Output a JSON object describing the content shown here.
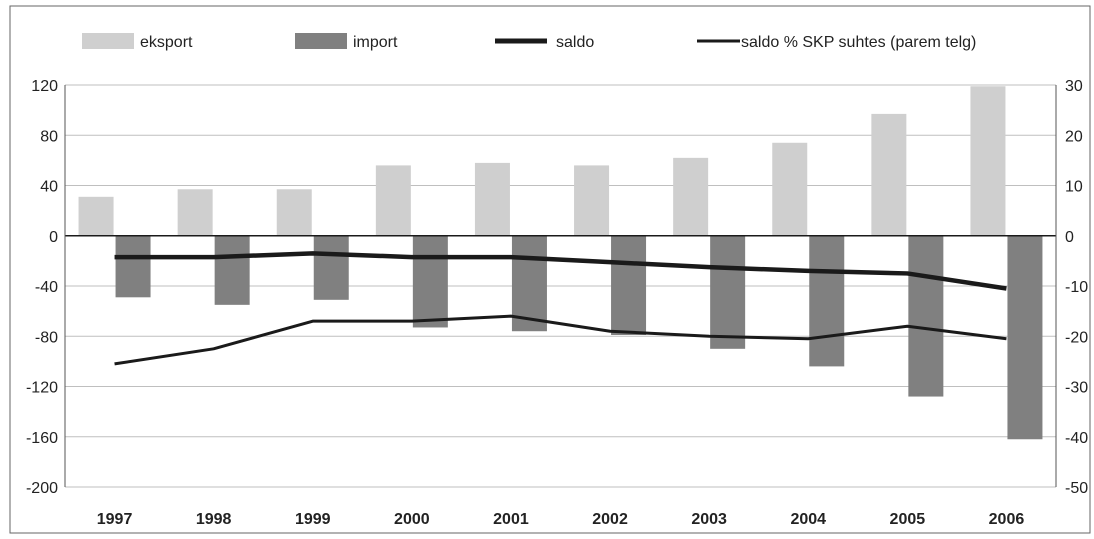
{
  "chart_data": {
    "type": "bar",
    "categories": [
      "1997",
      "1998",
      "1999",
      "2000",
      "2001",
      "2002",
      "2003",
      "2004",
      "2005",
      "2006"
    ],
    "series": [
      {
        "name": "eksport",
        "type": "bar",
        "color": "#cfcfcf",
        "axis": "left",
        "values": [
          31,
          37,
          37,
          56,
          58,
          56,
          62,
          74,
          97,
          119
        ]
      },
      {
        "name": "import",
        "type": "bar",
        "color": "#808080",
        "axis": "left",
        "values": [
          -49,
          -55,
          -51,
          -73,
          -76,
          -79,
          -90,
          -104,
          -128,
          -162
        ]
      },
      {
        "name": "saldo",
        "type": "line",
        "color": "#1a1a1a",
        "axis": "left",
        "values": [
          -17,
          -17,
          -14,
          -17,
          -17,
          -21,
          -25,
          -28,
          -30,
          -42
        ]
      },
      {
        "name": "saldo % SKP suhtes (parem telg)",
        "type": "line",
        "color": "#1a1a1a",
        "axis": "right",
        "values": [
          -25.5,
          -22.5,
          -17,
          -17,
          -16,
          -19,
          -20,
          -20.5,
          -18,
          -20.5
        ]
      }
    ],
    "y_left": {
      "min": -200,
      "max": 120,
      "ticks": [
        120,
        80,
        40,
        0,
        -40,
        -80,
        -120,
        -160,
        -200
      ]
    },
    "y_right": {
      "min": -50,
      "max": 30,
      "ticks": [
        30,
        20,
        10,
        0,
        -10,
        -20,
        -30,
        -40,
        -50
      ]
    },
    "grid": true,
    "legend_position": "top"
  }
}
